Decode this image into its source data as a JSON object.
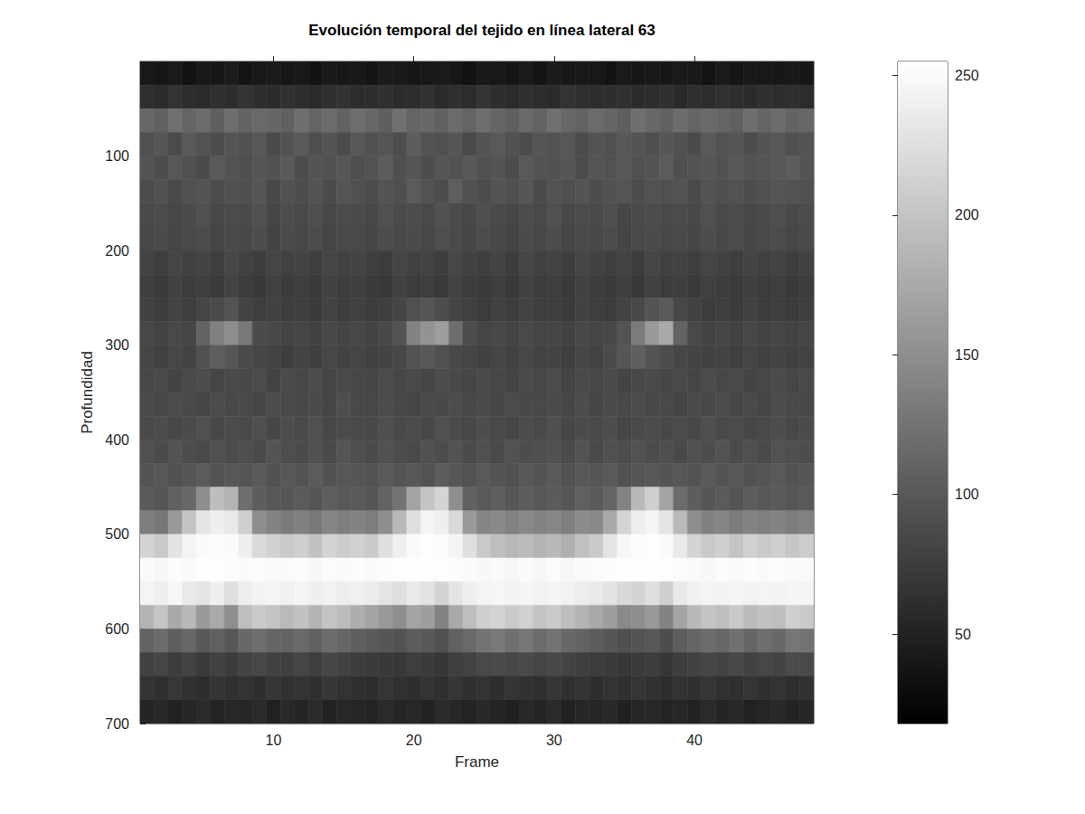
{
  "chart_data": {
    "type": "heatmap",
    "title": "Evolución temporal del tejido en línea lateral 63",
    "x_label": "Frame",
    "y_label": "Profundidad",
    "color": "gray",
    "x": [
      1,
      2,
      3,
      4,
      5,
      6,
      7,
      8,
      9,
      10,
      11,
      12,
      13,
      14,
      15,
      16,
      17,
      18,
      19,
      20,
      21,
      22,
      23,
      24,
      25,
      26,
      27,
      28,
      29,
      30,
      31,
      32,
      33,
      34,
      35,
      36,
      37,
      38,
      39,
      40,
      41,
      42,
      43,
      44,
      45,
      46,
      47,
      48
    ],
    "y": [
      12.5,
      37.5,
      62.5,
      87.5,
      112.5,
      137.5,
      162.5,
      187.5,
      212.5,
      237.5,
      262.5,
      287.5,
      312.5,
      337.5,
      362.5,
      387.5,
      412.5,
      437.5,
      462.5,
      487.5,
      512.5,
      537.5,
      562.5,
      587.5,
      612.5,
      637.5,
      662.5,
      687.5
    ],
    "xlim": [
      0.5,
      48.5
    ],
    "ylim": [
      0,
      700
    ],
    "xticks": [
      10,
      20,
      30,
      40
    ],
    "yticks": [
      100,
      200,
      300,
      400,
      500,
      600,
      700
    ],
    "colorbar": {
      "range": [
        18,
        255
      ],
      "ticks": [
        50,
        100,
        150,
        200,
        250
      ]
    },
    "values": [
      [
        40,
        38,
        42,
        36,
        41,
        39,
        44,
        37,
        40,
        43,
        38,
        41,
        36,
        42,
        39,
        40,
        37,
        43,
        41,
        38,
        40,
        42,
        39,
        36,
        41,
        40,
        38,
        43,
        37,
        42,
        39,
        41,
        40,
        36,
        42,
        38,
        41,
        39,
        43,
        40,
        37,
        42,
        38,
        41,
        40,
        39,
        42,
        38
      ],
      [
        62,
        58,
        65,
        60,
        57,
        63,
        59,
        66,
        61,
        58,
        64,
        60,
        57,
        62,
        65,
        59,
        61,
        63,
        58,
        60,
        64,
        57,
        62,
        59,
        66,
        61,
        58,
        63,
        60,
        57,
        65,
        62,
        59,
        61,
        64,
        58,
        60,
        63,
        57,
        62,
        59,
        64,
        61,
        58,
        63,
        60,
        62,
        59
      ],
      [
        115,
        108,
        122,
        112,
        118,
        105,
        120,
        110,
        116,
        113,
        107,
        121,
        111,
        117,
        109,
        119,
        114,
        106,
        123,
        112,
        115,
        108,
        118,
        111,
        120,
        113,
        107,
        116,
        110,
        122,
        114,
        109,
        117,
        112,
        105,
        121,
        115,
        108,
        119,
        111,
        116,
        113,
        107,
        120,
        112,
        118,
        110,
        114
      ],
      [
        92,
        98,
        88,
        101,
        94,
        90,
        97,
        93,
        99,
        87,
        95,
        102,
        91,
        96,
        89,
        100,
        93,
        97,
        90,
        104,
        95,
        92,
        98,
        88,
        96,
        101,
        93,
        90,
        97,
        94,
        99,
        89,
        95,
        92,
        100,
        96,
        91,
        98,
        93,
        88,
        102,
        94,
        97,
        90,
        96,
        99,
        92,
        95
      ],
      [
        96,
        90,
        99,
        93,
        88,
        101,
        95,
        91,
        97,
        94,
        102,
        89,
        96,
        93,
        99,
        91,
        95,
        104,
        92,
        97,
        90,
        98,
        94,
        100,
        92,
        96,
        89,
        101,
        95,
        93,
        98,
        90,
        97,
        94,
        99,
        92,
        96,
        103,
        91,
        95,
        98,
        93,
        100,
        94,
        97,
        99,
        104,
        96
      ],
      [
        90,
        94,
        87,
        92,
        96,
        89,
        93,
        91,
        98,
        86,
        94,
        90,
        95,
        88,
        97,
        92,
        89,
        96,
        91,
        103,
        94,
        90,
        105,
        93,
        89,
        95,
        92,
        98,
        88,
        94,
        91,
        96,
        90,
        93,
        97,
        89,
        94,
        92,
        95,
        88,
        96,
        91,
        94,
        90,
        93,
        97,
        95,
        92
      ],
      [
        86,
        90,
        84,
        88,
        92,
        85,
        89,
        87,
        93,
        83,
        90,
        86,
        91,
        84,
        89,
        88,
        85,
        92,
        87,
        90,
        86,
        94,
        89,
        85,
        91,
        87,
        84,
        90,
        86,
        92,
        85,
        89,
        87,
        91,
        84,
        88,
        90,
        86,
        89,
        85,
        92,
        87,
        90,
        84,
        88,
        91,
        86,
        89
      ],
      [
        84,
        88,
        82,
        86,
        89,
        83,
        87,
        85,
        90,
        81,
        88,
        84,
        89,
        82,
        87,
        86,
        83,
        90,
        85,
        88,
        84,
        91,
        87,
        83,
        89,
        85,
        82,
        88,
        84,
        90,
        83,
        87,
        85,
        89,
        82,
        86,
        88,
        84,
        87,
        83,
        90,
        85,
        88,
        82,
        86,
        89,
        84,
        87
      ],
      [
        80,
        76,
        83,
        78,
        81,
        77,
        84,
        79,
        75,
        82,
        78,
        80,
        76,
        83,
        79,
        81,
        77,
        74,
        82,
        78,
        80,
        76,
        84,
        79,
        77,
        81,
        75,
        83,
        78,
        80,
        76,
        82,
        79,
        77,
        81,
        75,
        83,
        78,
        80,
        76,
        82,
        79,
        77,
        81,
        78,
        80,
        76,
        79
      ],
      [
        76,
        72,
        79,
        74,
        77,
        73,
        80,
        75,
        71,
        78,
        74,
        76,
        72,
        79,
        75,
        77,
        73,
        70,
        78,
        74,
        76,
        72,
        80,
        75,
        73,
        77,
        71,
        79,
        74,
        76,
        72,
        78,
        75,
        73,
        77,
        71,
        79,
        74,
        76,
        72,
        78,
        75,
        73,
        77,
        74,
        76,
        72,
        75
      ],
      [
        78,
        74,
        80,
        76,
        82,
        88,
        95,
        80,
        76,
        79,
        75,
        77,
        73,
        80,
        76,
        78,
        74,
        77,
        82,
        92,
        98,
        90,
        82,
        78,
        74,
        79,
        75,
        80,
        76,
        77,
        73,
        79,
        76,
        74,
        80,
        85,
        96,
        102,
        84,
        78,
        75,
        77,
        73,
        78,
        75,
        77,
        74,
        76
      ],
      [
        84,
        80,
        86,
        82,
        110,
        138,
        150,
        130,
        88,
        85,
        81,
        83,
        79,
        86,
        82,
        84,
        80,
        86,
        95,
        140,
        155,
        165,
        120,
        90,
        82,
        85,
        81,
        86,
        82,
        83,
        79,
        85,
        82,
        84,
        95,
        132,
        160,
        175,
        110,
        86,
        81,
        83,
        79,
        84,
        81,
        83,
        80,
        82
      ],
      [
        82,
        78,
        84,
        80,
        92,
        105,
        98,
        88,
        83,
        80,
        76,
        81,
        77,
        84,
        80,
        82,
        78,
        81,
        85,
        95,
        100,
        92,
        86,
        82,
        78,
        83,
        79,
        84,
        80,
        81,
        77,
        83,
        80,
        88,
        98,
        106,
        96,
        90,
        84,
        80,
        79,
        81,
        77,
        82,
        79,
        81,
        78,
        80
      ],
      [
        84,
        88,
        81,
        86,
        90,
        83,
        87,
        85,
        89,
        80,
        88,
        84,
        90,
        82,
        86,
        85,
        83,
        89,
        84,
        87,
        82,
        90,
        86,
        83,
        88,
        84,
        81,
        87,
        84,
        89,
        82,
        86,
        85,
        88,
        81,
        85,
        87,
        83,
        86,
        82,
        89,
        84,
        87,
        81,
        85,
        88,
        83,
        86
      ],
      [
        88,
        84,
        90,
        86,
        83,
        89,
        85,
        87,
        82,
        90,
        86,
        84,
        88,
        83,
        91,
        86,
        84,
        89,
        85,
        82,
        88,
        86,
        90,
        84,
        87,
        83,
        89,
        85,
        86,
        88,
        84,
        90,
        83,
        87,
        85,
        89,
        84,
        86,
        82,
        88,
        85,
        90,
        84,
        87,
        83,
        89,
        86,
        85
      ],
      [
        86,
        90,
        84,
        88,
        92,
        85,
        89,
        87,
        91,
        83,
        90,
        86,
        92,
        84,
        88,
        87,
        85,
        91,
        86,
        89,
        84,
        92,
        88,
        85,
        90,
        86,
        83,
        89,
        86,
        91,
        84,
        88,
        87,
        90,
        83,
        87,
        89,
        85,
        88,
        84,
        91,
        86,
        89,
        83,
        87,
        90,
        85,
        88
      ],
      [
        92,
        88,
        95,
        90,
        86,
        93,
        89,
        91,
        87,
        96,
        90,
        88,
        93,
        87,
        97,
        91,
        88,
        94,
        90,
        86,
        93,
        90,
        95,
        88,
        92,
        87,
        94,
        90,
        91,
        93,
        88,
        95,
        87,
        92,
        90,
        94,
        89,
        91,
        86,
        93,
        90,
        95,
        88,
        92,
        87,
        94,
        91,
        90
      ],
      [
        96,
        100,
        93,
        98,
        103,
        95,
        99,
        97,
        102,
        94,
        100,
        96,
        103,
        94,
        98,
        97,
        95,
        102,
        96,
        99,
        94,
        104,
        99,
        95,
        101,
        96,
        93,
        100,
        96,
        102,
        94,
        99,
        97,
        101,
        93,
        97,
        100,
        95,
        99,
        94,
        102,
        96,
        100,
        93,
        97,
        101,
        95,
        98
      ],
      [
        102,
        98,
        108,
        115,
        150,
        195,
        185,
        120,
        104,
        100,
        98,
        103,
        97,
        105,
        100,
        102,
        98,
        110,
        125,
        170,
        200,
        215,
        150,
        108,
        101,
        106,
        99,
        104,
        100,
        103,
        98,
        107,
        102,
        112,
        140,
        190,
        210,
        170,
        118,
        104,
        98,
        103,
        97,
        104,
        100,
        102,
        98,
        101
      ],
      [
        135,
        128,
        160,
        200,
        230,
        240,
        235,
        210,
        150,
        140,
        132,
        138,
        130,
        142,
        136,
        140,
        134,
        150,
        190,
        225,
        245,
        240,
        220,
        160,
        142,
        145,
        138,
        144,
        140,
        143,
        136,
        148,
        145,
        175,
        215,
        238,
        245,
        230,
        190,
        150,
        138,
        142,
        134,
        140,
        136,
        140,
        134,
        138
      ],
      [
        215,
        205,
        230,
        245,
        250,
        252,
        250,
        240,
        220,
        212,
        205,
        210,
        198,
        215,
        208,
        212,
        206,
        225,
        240,
        250,
        253,
        252,
        245,
        225,
        205,
        195,
        188,
        192,
        185,
        190,
        182,
        196,
        205,
        230,
        248,
        252,
        253,
        250,
        235,
        215,
        205,
        210,
        200,
        212,
        205,
        210,
        202,
        208
      ],
      [
        250,
        248,
        252,
        250,
        253,
        254,
        252,
        250,
        251,
        249,
        250,
        252,
        248,
        251,
        250,
        252,
        250,
        251,
        253,
        254,
        254,
        253,
        252,
        250,
        248,
        249,
        247,
        250,
        248,
        251,
        247,
        250,
        251,
        252,
        254,
        254,
        254,
        253,
        252,
        250,
        248,
        251,
        249,
        252,
        250,
        251,
        249,
        250
      ],
      [
        245,
        240,
        248,
        235,
        230,
        240,
        225,
        238,
        244,
        246,
        242,
        245,
        240,
        243,
        238,
        241,
        236,
        230,
        225,
        235,
        228,
        215,
        230,
        240,
        245,
        247,
        244,
        246,
        243,
        245,
        242,
        238,
        235,
        228,
        220,
        215,
        225,
        210,
        235,
        242,
        245,
        244,
        246,
        243,
        245,
        244,
        246,
        245
      ],
      [
        185,
        200,
        175,
        190,
        160,
        175,
        150,
        195,
        205,
        200,
        190,
        198,
        185,
        200,
        192,
        180,
        170,
        160,
        150,
        170,
        165,
        140,
        175,
        195,
        210,
        215,
        205,
        212,
        200,
        205,
        195,
        185,
        175,
        165,
        145,
        150,
        160,
        140,
        170,
        190,
        200,
        195,
        205,
        192,
        198,
        195,
        210,
        205
      ],
      [
        110,
        118,
        105,
        114,
        100,
        108,
        98,
        115,
        120,
        112,
        110,
        116,
        108,
        118,
        112,
        106,
        102,
        98,
        95,
        104,
        100,
        92,
        108,
        116,
        125,
        130,
        122,
        128,
        118,
        125,
        115,
        110,
        104,
        98,
        92,
        96,
        100,
        90,
        105,
        112,
        118,
        114,
        122,
        112,
        120,
        115,
        128,
        124
      ],
      [
        78,
        82,
        75,
        80,
        72,
        79,
        74,
        81,
        84,
        78,
        77,
        82,
        76,
        83,
        79,
        75,
        73,
        71,
        70,
        76,
        73,
        69,
        77,
        80,
        86,
        88,
        84,
        87,
        82,
        85,
        80,
        77,
        74,
        72,
        70,
        73,
        75,
        68,
        76,
        79,
        83,
        80,
        85,
        79,
        84,
        81,
        88,
        86
      ],
      [
        66,
        62,
        69,
        64,
        60,
        67,
        63,
        65,
        61,
        68,
        64,
        66,
        62,
        69,
        65,
        63,
        60,
        67,
        64,
        61,
        66,
        62,
        68,
        63,
        65,
        61,
        67,
        64,
        62,
        68,
        63,
        66,
        61,
        65,
        62,
        67,
        64,
        60,
        66,
        63,
        68,
        64,
        62,
        67,
        63,
        65,
        61,
        64
      ],
      [
        52,
        56,
        50,
        54,
        58,
        51,
        55,
        53,
        57,
        49,
        56,
        52,
        58,
        50,
        54,
        53,
        51,
        57,
        52,
        55,
        50,
        58,
        54,
        51,
        56,
        52,
        49,
        55,
        52,
        57,
        50,
        54,
        53,
        56,
        49,
        53,
        55,
        51,
        54,
        50,
        57,
        52,
        55,
        49,
        53,
        56,
        51,
        54
      ]
    ]
  }
}
